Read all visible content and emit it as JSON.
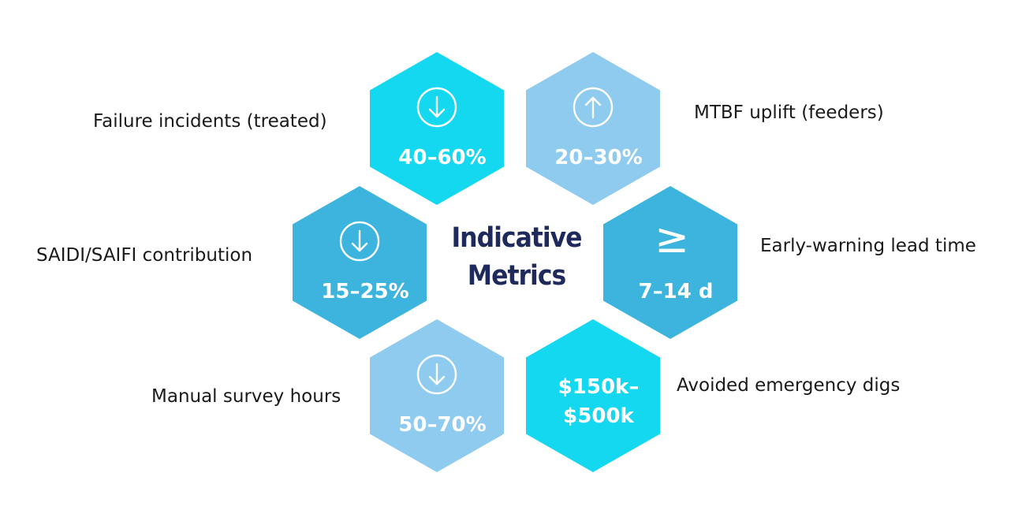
{
  "title": {
    "line1": "Indicative",
    "line2": "Metrics"
  },
  "colors": {
    "title": "#1f2a5c",
    "cyan": "#14d8f0",
    "light_blue": "#8ecbef",
    "mid_blue": "#3cb4de",
    "label_text": "#1a1a1a"
  },
  "metrics": [
    {
      "label": "Failure incidents (treated)",
      "value_lines": [
        "40–60%"
      ],
      "icon": "arrow-down-circle-icon",
      "color": "#14d8f0"
    },
    {
      "label": "MTBF uplift (feeders)",
      "value_lines": [
        "20–30%"
      ],
      "icon": "arrow-up-circle-icon",
      "color": "#8ecbef"
    },
    {
      "label": "SAIDI/SAIFI contribution",
      "value_lines": [
        "15–25%"
      ],
      "icon": "arrow-down-circle-icon",
      "color": "#3cb4de"
    },
    {
      "label": "Early-warning lead time",
      "value_lines": [
        "7–14 d"
      ],
      "icon": "greater-than-or-equal-icon",
      "icon_glyph": "≥",
      "color": "#3cb4de"
    },
    {
      "label": "Manual survey hours",
      "value_lines": [
        "50–70%"
      ],
      "icon": "arrow-down-circle-icon",
      "color": "#8ecbef"
    },
    {
      "label": "Avoided emergency digs",
      "value_lines": [
        "$150k–",
        "$500k"
      ],
      "icon": "none",
      "color": "#14d8f0"
    }
  ]
}
